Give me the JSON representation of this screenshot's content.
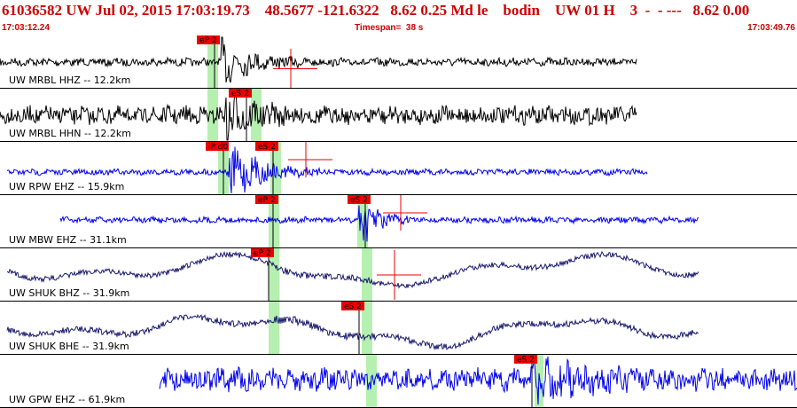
{
  "header": {
    "title": "61036582 UW Jul 02, 2015 17:03:19.73    48.5677 -121.6322   8.62 0.25 Md le    bodin    UW 01 H    3  -  - ---   8.62 0.00",
    "start_time": "17:03:12.24",
    "timespan": "Timespan=  38 s",
    "end_time": "17:03:49.76"
  },
  "colors": {
    "header_text": "#cc0000",
    "pick_flag": "#ee0000",
    "pick_band": "#b6f0b0",
    "trace_black": "#000000",
    "trace_blue": "#0000ee",
    "trace_navy": "#1a1a6e",
    "divider": "#000000"
  },
  "traces": [
    {
      "label": "UW MRBL HHZ -- 12.2km",
      "color": "#000000",
      "picks": [
        "eP 2"
      ]
    },
    {
      "label": "UW MRBL HHN -- 12.2km",
      "color": "#000000",
      "picks": [
        "eS 2"
      ]
    },
    {
      "label": "UW RPW EHZ -- 15.9km",
      "color": "#0000ee",
      "picks": [
        "iP d0",
        "eS 2"
      ]
    },
    {
      "label": "UW MBW EHZ -- 31.1km",
      "color": "#0000ee",
      "picks": [
        "eP 2",
        "eS 2"
      ]
    },
    {
      "label": "UW SHUK BHZ -- 31.9km",
      "color": "#1a1a6e",
      "picks": [
        "eP 2"
      ]
    },
    {
      "label": "UW SHUK BHE -- 31.9km",
      "color": "#1a1a6e",
      "picks": [
        "eS 2"
      ]
    },
    {
      "label": "UW GPW EHZ -- 61.9km",
      "color": "#0000ee",
      "picks": [
        "eS 2"
      ]
    }
  ]
}
